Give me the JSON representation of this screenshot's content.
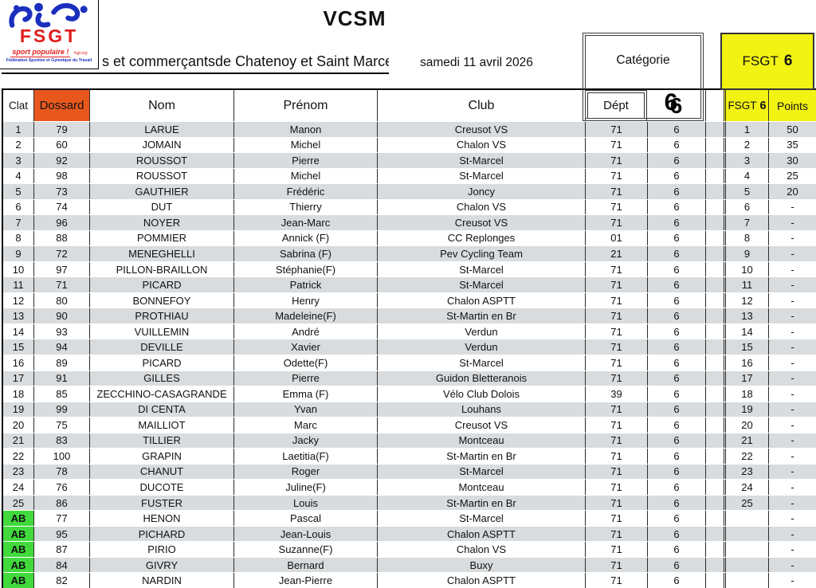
{
  "page": {
    "title": "VCSM",
    "subtitle_visible_left": ")",
    "subtitle_visible": "s et commerçantsde Chatenoy et Saint Marcel",
    "date": "samedi 11 avril 2026"
  },
  "logo": {
    "acronym": "FSGT",
    "tagline": "sport populaire !",
    "tagline_small": "fsgt.org",
    "org_name": "Fédération Sportive et Gymnique du Travail"
  },
  "category_box": {
    "label": "Catégorie",
    "value": "6"
  },
  "fsgt_box": {
    "label": "FSGT",
    "value": "6"
  },
  "table": {
    "headers": {
      "clat": "Clat",
      "dossard": "Dossard",
      "nom": "Nom",
      "prenom": "Prénom",
      "club": "Club",
      "dept": "Dépt",
      "fsgt_label": "FSGT",
      "fsgt_value": "6",
      "points": "Points"
    },
    "rows": [
      {
        "clat": "1",
        "dossard": "79",
        "nom": "LARUE",
        "prenom": "Manon",
        "club": "Creusot VS",
        "dept": "71",
        "cat": "6",
        "fsgt": "1",
        "points": "50"
      },
      {
        "clat": "2",
        "dossard": "60",
        "nom": "JOMAIN",
        "prenom": "Michel",
        "club": "Chalon VS",
        "dept": "71",
        "cat": "6",
        "fsgt": "2",
        "points": "35"
      },
      {
        "clat": "3",
        "dossard": "92",
        "nom": "ROUSSOT",
        "prenom": "Pierre",
        "club": "St-Marcel",
        "dept": "71",
        "cat": "6",
        "fsgt": "3",
        "points": "30"
      },
      {
        "clat": "4",
        "dossard": "98",
        "nom": "ROUSSOT",
        "prenom": "Michel",
        "club": "St-Marcel",
        "dept": "71",
        "cat": "6",
        "fsgt": "4",
        "points": "25"
      },
      {
        "clat": "5",
        "dossard": "73",
        "nom": "GAUTHIER",
        "prenom": "Frédéric",
        "club": "Joncy",
        "dept": "71",
        "cat": "6",
        "fsgt": "5",
        "points": "20"
      },
      {
        "clat": "6",
        "dossard": "74",
        "nom": "DUT",
        "prenom": "Thierry",
        "club": "Chalon VS",
        "dept": "71",
        "cat": "6",
        "fsgt": "6",
        "points": "-"
      },
      {
        "clat": "7",
        "dossard": "96",
        "nom": "NOYER",
        "prenom": "Jean-Marc",
        "club": "Creusot VS",
        "dept": "71",
        "cat": "6",
        "fsgt": "7",
        "points": "-"
      },
      {
        "clat": "8",
        "dossard": "88",
        "nom": "POMMIER",
        "prenom": "Annick (F)",
        "club": "CC Replonges",
        "dept": "01",
        "cat": "6",
        "fsgt": "8",
        "points": "-"
      },
      {
        "clat": "9",
        "dossard": "72",
        "nom": "MENEGHELLI",
        "prenom": "Sabrina (F)",
        "club": "Pev Cycling Team",
        "dept": "21",
        "cat": "6",
        "fsgt": "9",
        "points": "-"
      },
      {
        "clat": "10",
        "dossard": "97",
        "nom": "PILLON-BRAILLON",
        "prenom": "Stéphanie(F)",
        "club": "St-Marcel",
        "dept": "71",
        "cat": "6",
        "fsgt": "10",
        "points": "-"
      },
      {
        "clat": "11",
        "dossard": "71",
        "nom": "PICARD",
        "prenom": "Patrick",
        "club": "St-Marcel",
        "dept": "71",
        "cat": "6",
        "fsgt": "11",
        "points": "-"
      },
      {
        "clat": "12",
        "dossard": "80",
        "nom": "BONNEFOY",
        "prenom": "Henry",
        "club": "Chalon ASPTT",
        "dept": "71",
        "cat": "6",
        "fsgt": "12",
        "points": "-"
      },
      {
        "clat": "13",
        "dossard": "90",
        "nom": "PROTHIAU",
        "prenom": "Madeleine(F)",
        "club": "St-Martin en Br",
        "dept": "71",
        "cat": "6",
        "fsgt": "13",
        "points": "-"
      },
      {
        "clat": "14",
        "dossard": "93",
        "nom": "VUILLEMIN",
        "prenom": "André",
        "club": "Verdun",
        "dept": "71",
        "cat": "6",
        "fsgt": "14",
        "points": "-"
      },
      {
        "clat": "15",
        "dossard": "94",
        "nom": "DEVILLE",
        "prenom": "Xavier",
        "club": "Verdun",
        "dept": "71",
        "cat": "6",
        "fsgt": "15",
        "points": "-"
      },
      {
        "clat": "16",
        "dossard": "89",
        "nom": "PICARD",
        "prenom": "Odette(F)",
        "club": "St-Marcel",
        "dept": "71",
        "cat": "6",
        "fsgt": "16",
        "points": "-"
      },
      {
        "clat": "17",
        "dossard": "91",
        "nom": "GILLES",
        "prenom": "Pierre",
        "club": "Guidon Bletteranois",
        "dept": "71",
        "cat": "6",
        "fsgt": "17",
        "points": "-"
      },
      {
        "clat": "18",
        "dossard": "85",
        "nom": "ZECCHINO-CASAGRANDE",
        "prenom": "Emma (F)",
        "club": "Vélo Club Dolois",
        "dept": "39",
        "cat": "6",
        "fsgt": "18",
        "points": "-"
      },
      {
        "clat": "19",
        "dossard": "99",
        "nom": "DI CENTA",
        "prenom": "Yvan",
        "club": "Louhans",
        "dept": "71",
        "cat": "6",
        "fsgt": "19",
        "points": "-"
      },
      {
        "clat": "20",
        "dossard": "75",
        "nom": "MAILLIOT",
        "prenom": "Marc",
        "club": "Creusot VS",
        "dept": "71",
        "cat": "6",
        "fsgt": "20",
        "points": "-"
      },
      {
        "clat": "21",
        "dossard": "83",
        "nom": "TILLIER",
        "prenom": "Jacky",
        "club": "Montceau",
        "dept": "71",
        "cat": "6",
        "fsgt": "21",
        "points": "-"
      },
      {
        "clat": "22",
        "dossard": "100",
        "nom": "GRAPIN",
        "prenom": "Laetitia(F)",
        "club": "St-Martin en Br",
        "dept": "71",
        "cat": "6",
        "fsgt": "22",
        "points": "-"
      },
      {
        "clat": "23",
        "dossard": "78",
        "nom": "CHANUT",
        "prenom": "Roger",
        "club": "St-Marcel",
        "dept": "71",
        "cat": "6",
        "fsgt": "23",
        "points": "-"
      },
      {
        "clat": "24",
        "dossard": "76",
        "nom": "DUCOTE",
        "prenom": "Juline(F)",
        "club": "Montceau",
        "dept": "71",
        "cat": "6",
        "fsgt": "24",
        "points": "-"
      },
      {
        "clat": "25",
        "dossard": "86",
        "nom": "FUSTER",
        "prenom": "Louis",
        "club": "St-Martin en Br",
        "dept": "71",
        "cat": "6",
        "fsgt": "25",
        "points": "-"
      },
      {
        "clat": "AB",
        "dossard": "77",
        "nom": "HENON",
        "prenom": "Pascal",
        "club": "St-Marcel",
        "dept": "71",
        "cat": "6",
        "fsgt": "",
        "points": "-"
      },
      {
        "clat": "AB",
        "dossard": "95",
        "nom": "PICHARD",
        "prenom": "Jean-Louis",
        "club": "Chalon ASPTT",
        "dept": "71",
        "cat": "6",
        "fsgt": "",
        "points": "-"
      },
      {
        "clat": "AB",
        "dossard": "87",
        "nom": "PIRIO",
        "prenom": "Suzanne(F)",
        "club": "Chalon VS",
        "dept": "71",
        "cat": "6",
        "fsgt": "",
        "points": "-"
      },
      {
        "clat": "AB",
        "dossard": "84",
        "nom": "GIVRY",
        "prenom": "Bernard",
        "club": "Buxy",
        "dept": "71",
        "cat": "6",
        "fsgt": "",
        "points": "-"
      },
      {
        "clat": "AB",
        "dossard": "82",
        "nom": "NARDIN",
        "prenom": "Jean-Pierre",
        "club": "Chalon ASPTT",
        "dept": "71",
        "cat": "6",
        "fsgt": "",
        "points": "-"
      }
    ]
  },
  "colors": {
    "orange": "#e8581c",
    "yellow": "#f2f213",
    "green": "#41d93c",
    "band_gray": "#d9dcde",
    "logo_blue": "#1b2fbe",
    "logo_red": "#e11d1d"
  }
}
